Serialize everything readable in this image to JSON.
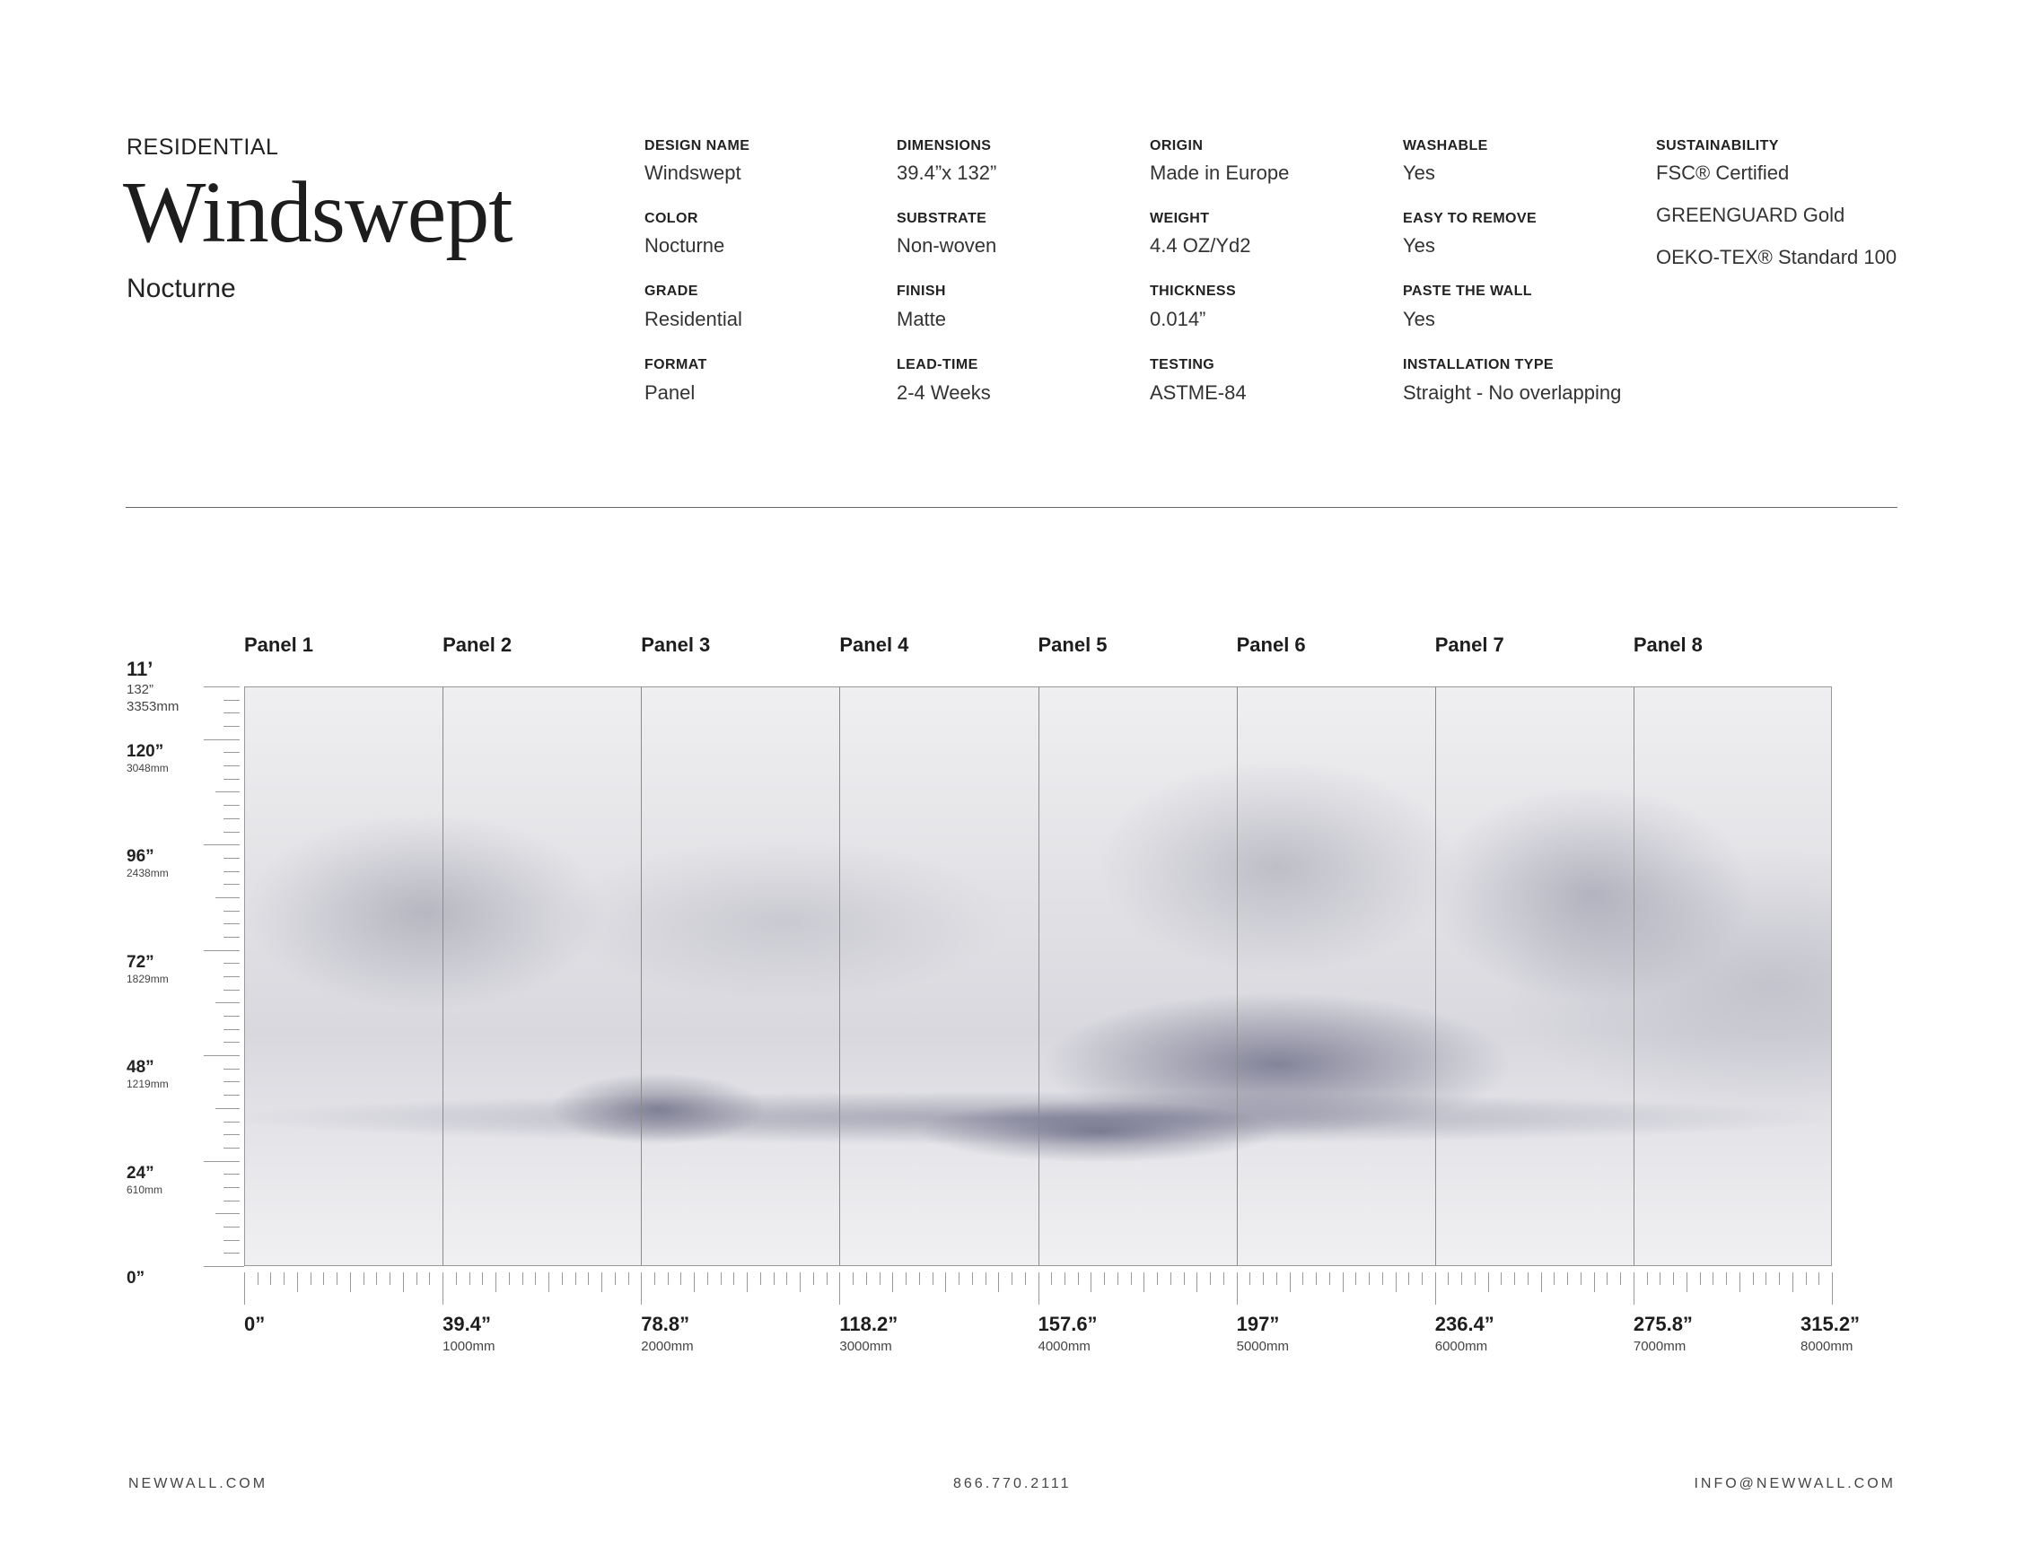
{
  "header": {
    "category": "RESIDENTIAL",
    "design_title": "Windswept",
    "colorway": "Nocturne"
  },
  "specs": [
    [
      {
        "label": "DESIGN NAME",
        "value": "Windswept"
      },
      {
        "label": "COLOR",
        "value": "Nocturne"
      },
      {
        "label": "GRADE",
        "value": "Residential"
      },
      {
        "label": "FORMAT",
        "value": "Panel"
      }
    ],
    [
      {
        "label": "DIMENSIONS",
        "value": "39.4”x 132”"
      },
      {
        "label": "SUBSTRATE",
        "value": "Non-woven"
      },
      {
        "label": "FINISH",
        "value": "Matte"
      },
      {
        "label": "LEAD-TIME",
        "value": "2-4 Weeks"
      }
    ],
    [
      {
        "label": "ORIGIN",
        "value": "Made in Europe"
      },
      {
        "label": "WEIGHT",
        "value": "4.4 OZ/Yd2"
      },
      {
        "label": "THICKNESS",
        "value": "0.014”"
      },
      {
        "label": "TESTING",
        "value": "ASTME-84"
      }
    ],
    [
      {
        "label": "WASHABLE",
        "value": "Yes"
      },
      {
        "label": "EASY TO REMOVE",
        "value": "Yes"
      },
      {
        "label": "PASTE THE WALL",
        "value": "Yes"
      },
      {
        "label": "INSTALLATION TYPE",
        "value": "Straight - No overlapping"
      }
    ]
  ],
  "sustainability": {
    "label": "SUSTAINABILITY",
    "items": [
      "FSC® Certified",
      "GREENGUARD Gold",
      "OEKO-TEX® Standard 100"
    ]
  },
  "panels": [
    "Panel 1",
    "Panel 2",
    "Panel 3",
    "Panel 4",
    "Panel 5",
    "Panel 6",
    "Panel 7",
    "Panel 8"
  ],
  "vertical_ruler": {
    "top": {
      "feet": "11’",
      "inches": "132”",
      "mm": "3353mm"
    },
    "marks": [
      {
        "inches": "120”",
        "mm": "3048mm"
      },
      {
        "inches": "96”",
        "mm": "2438mm"
      },
      {
        "inches": "72”",
        "mm": "1829mm"
      },
      {
        "inches": "48”",
        "mm": "1219mm"
      },
      {
        "inches": "24”",
        "mm": "610mm"
      },
      {
        "inches": "0”",
        "mm": ""
      }
    ]
  },
  "horizontal_ruler": [
    {
      "inches": "0”",
      "mm": ""
    },
    {
      "inches": "39.4”",
      "mm": "1000mm"
    },
    {
      "inches": "78.8”",
      "mm": "2000mm"
    },
    {
      "inches": "118.2”",
      "mm": "3000mm"
    },
    {
      "inches": "157.6”",
      "mm": "4000mm"
    },
    {
      "inches": "197”",
      "mm": "5000mm"
    },
    {
      "inches": "236.4”",
      "mm": "6000mm"
    },
    {
      "inches": "275.8”",
      "mm": "7000mm"
    },
    {
      "inches": "315.2”",
      "mm": "8000mm"
    }
  ],
  "footer": {
    "website": "NEWWALL.COM",
    "phone": "866.770.2111",
    "email": "INFO@NEWWALL.COM"
  }
}
